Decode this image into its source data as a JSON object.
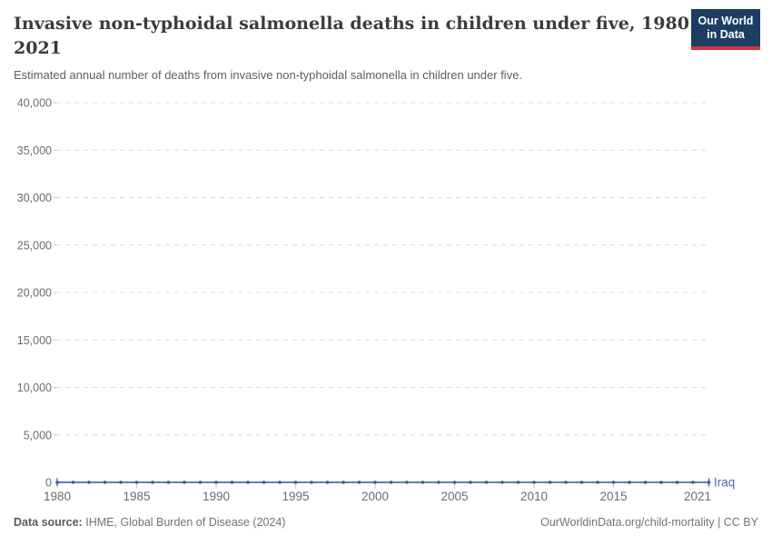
{
  "header": {
    "title": "Invasive non-typhoidal salmonella deaths in children under five, 1980 to 2021",
    "subtitle": "Estimated annual number of deaths from invasive non-typhoidal salmonella in children under five."
  },
  "logo": {
    "line1": "Our World",
    "line2": "in Data",
    "bg_color": "#1d3d63",
    "accent_color": "#d0353d"
  },
  "chart_data": {
    "type": "line",
    "title": "Invasive non-typhoidal salmonella deaths in children under five, 1980 to 2021",
    "xlabel": "",
    "ylabel": "",
    "xlim": [
      1980,
      2021
    ],
    "ylim": [
      0,
      40000
    ],
    "grid": "horizontal-dashed",
    "legend_position": "end-of-line",
    "yticks": [
      0,
      5000,
      10000,
      15000,
      20000,
      25000,
      30000,
      35000,
      40000
    ],
    "ytick_labels": [
      "0",
      "5,000",
      "10,000",
      "15,000",
      "20,000",
      "25,000",
      "30,000",
      "35,000",
      "40,000"
    ],
    "xticks": [
      1980,
      1985,
      1990,
      1995,
      2000,
      2005,
      2010,
      2015,
      2021
    ],
    "xtick_labels": [
      "1980",
      "1985",
      "1990",
      "1995",
      "2000",
      "2005",
      "2010",
      "2015",
      "2021"
    ],
    "x": [
      1980,
      1981,
      1982,
      1983,
      1984,
      1985,
      1986,
      1987,
      1988,
      1989,
      1990,
      1991,
      1992,
      1993,
      1994,
      1995,
      1996,
      1997,
      1998,
      1999,
      2000,
      2001,
      2002,
      2003,
      2004,
      2005,
      2006,
      2007,
      2008,
      2009,
      2010,
      2011,
      2012,
      2013,
      2014,
      2015,
      2016,
      2017,
      2018,
      2019,
      2020,
      2021
    ],
    "series": [
      {
        "name": "Iraq",
        "color": "#4d6bb3",
        "marker_color": "#3d5a9c",
        "values": [
          0,
          0,
          0,
          0,
          0,
          0,
          0,
          0,
          0,
          0,
          0,
          0,
          0,
          0,
          0,
          0,
          0,
          0,
          0,
          0,
          0,
          0,
          0,
          0,
          0,
          0,
          0,
          0,
          0,
          0,
          0,
          0,
          0,
          0,
          0,
          0,
          0,
          0,
          0,
          0,
          0,
          0
        ]
      }
    ]
  },
  "footer": {
    "source_label": "Data source:",
    "source_text": "IHME, Global Burden of Disease (2024)",
    "license_text": "OurWorldinData.org/child-mortality | CC BY"
  }
}
